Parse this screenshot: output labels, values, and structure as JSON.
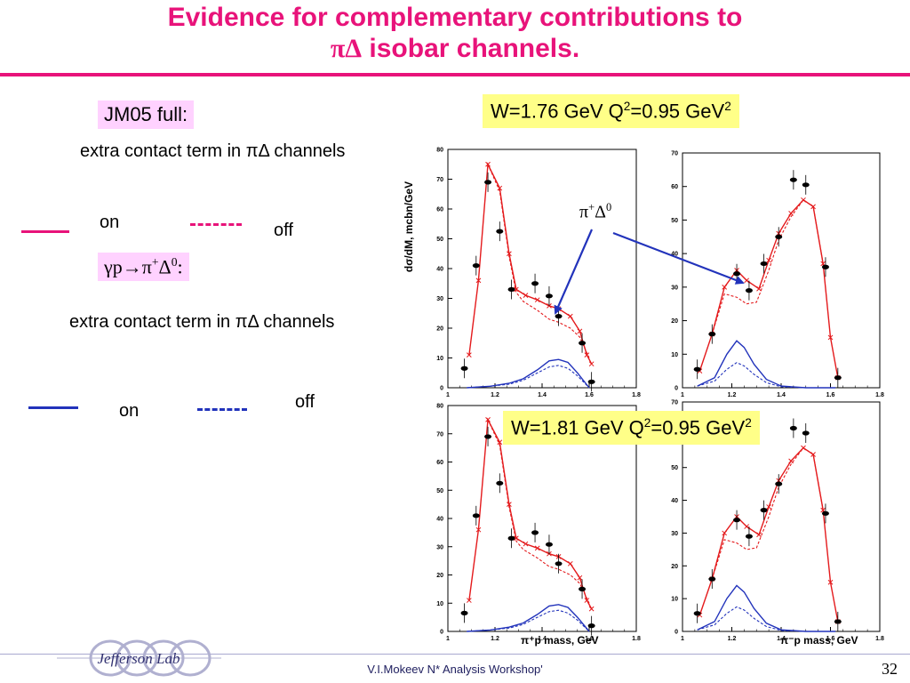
{
  "title": {
    "line1": "Evidence for complementary contributions to",
    "line2_symbol": "πΔ",
    "line2_text": " isobar channels."
  },
  "left": {
    "jm05": "JM05 full:",
    "red_desc": "extra contact term in πΔ channels",
    "red_on": "on",
    "red_off": "off",
    "reaction_prefix": "γp→π",
    "reaction_sup1": "+",
    "reaction_mid": "Δ",
    "reaction_sup2": "0",
    "reaction_suffix": ":",
    "blue_desc": "extra contact term in πΔ channels",
    "blue_on": "on",
    "blue_off": "off",
    "red_color": "#e8137a",
    "blue_color": "#2233bb"
  },
  "boxes": {
    "w1_prefix": "W=1.76 GeV Q",
    "w1_sup1": "2",
    "w1_mid": "=0.95 GeV",
    "w1_sup2": "2",
    "w2_prefix": "W=1.81 GeV Q",
    "w2_sup1": "2",
    "w2_mid": "=0.95 GeV",
    "w2_sup2": "2"
  },
  "annotation": {
    "label": "π",
    "sup1": "+",
    "mid": "Δ",
    "sup2": "0"
  },
  "axes": {
    "ylabel": "dσ/dM, mcbn/GeV",
    "xlabel_left": "π⁺p mass, GeV",
    "xlabel_right": "π⁻p mass, GeV"
  },
  "footer": {
    "text": "V.I.Mokeev  N* Analysis Workshop'",
    "page": "32",
    "logo_text": "Jefferson Lab"
  },
  "chart_data": [
    {
      "type": "line",
      "panel": "top-left",
      "xlim": [
        1,
        1.8
      ],
      "ylim": [
        0,
        80
      ],
      "xticks": [
        1,
        1.2,
        1.4,
        1.6,
        1.8
      ],
      "yticks": [
        0,
        10,
        20,
        30,
        40,
        50,
        60,
        70,
        80
      ],
      "points": {
        "x": [
          1.07,
          1.12,
          1.17,
          1.22,
          1.27,
          1.37,
          1.43,
          1.47,
          1.57,
          1.61
        ],
        "y": [
          6.5,
          41,
          69,
          52.5,
          33,
          35,
          30.8,
          24,
          15,
          2
        ]
      },
      "series": [
        {
          "color": "#e41a1c",
          "style": "solid",
          "x": [
            1.09,
            1.13,
            1.17,
            1.22,
            1.26,
            1.29,
            1.33,
            1.38,
            1.43,
            1.47,
            1.52,
            1.56,
            1.59,
            1.61
          ],
          "y": [
            11,
            36,
            75,
            67,
            45,
            33,
            31,
            29.5,
            27.5,
            26.5,
            24,
            19,
            11,
            8
          ]
        },
        {
          "color": "#e41a1c",
          "style": "dashed",
          "x": [
            1.17,
            1.22,
            1.26,
            1.29,
            1.32,
            1.38,
            1.43,
            1.47,
            1.52,
            1.56,
            1.6
          ],
          "y": [
            75,
            66,
            44,
            32,
            29,
            26,
            23,
            22,
            20,
            17,
            10
          ]
        },
        {
          "color": "#2233bb",
          "style": "solid",
          "x": [
            1.08,
            1.18,
            1.26,
            1.32,
            1.38,
            1.43,
            1.47,
            1.51,
            1.55,
            1.6
          ],
          "y": [
            0,
            0.5,
            1.5,
            3,
            6,
            9,
            9.5,
            8.5,
            5,
            0
          ]
        },
        {
          "color": "#2233bb",
          "style": "dashed",
          "x": [
            1.08,
            1.18,
            1.26,
            1.32,
            1.38,
            1.43,
            1.47,
            1.51,
            1.55,
            1.6
          ],
          "y": [
            0,
            0.5,
            1.2,
            2.5,
            5,
            7,
            7.5,
            6.5,
            4,
            0
          ]
        }
      ]
    },
    {
      "type": "line",
      "panel": "top-right",
      "xlim": [
        1,
        1.8
      ],
      "ylim": [
        0,
        70
      ],
      "xticks": [
        1,
        1.2,
        1.4,
        1.6,
        1.8
      ],
      "yticks": [
        0,
        10,
        20,
        30,
        40,
        50,
        60,
        70
      ],
      "points": {
        "x": [
          1.06,
          1.12,
          1.22,
          1.27,
          1.33,
          1.39,
          1.45,
          1.5,
          1.58,
          1.63
        ],
        "y": [
          5.5,
          16,
          34,
          29,
          37,
          45,
          62,
          60.5,
          36,
          3
        ]
      },
      "series": [
        {
          "color": "#e41a1c",
          "style": "solid",
          "x": [
            1.07,
            1.12,
            1.17,
            1.22,
            1.26,
            1.31,
            1.35,
            1.39,
            1.44,
            1.49,
            1.53,
            1.57,
            1.6,
            1.63
          ],
          "y": [
            5,
            16,
            30,
            35,
            32,
            29.5,
            38,
            46,
            52,
            56,
            54,
            37,
            15,
            3
          ]
        },
        {
          "color": "#e41a1c",
          "style": "dashed",
          "x": [
            1.12,
            1.17,
            1.22,
            1.26,
            1.3,
            1.35,
            1.39,
            1.44,
            1.49,
            1.53,
            1.57
          ],
          "y": [
            16,
            28,
            27,
            25,
            25.5,
            35,
            44,
            51,
            56,
            54,
            37
          ]
        },
        {
          "color": "#2233bb",
          "style": "solid",
          "x": [
            1.06,
            1.13,
            1.18,
            1.22,
            1.25,
            1.29,
            1.34,
            1.4,
            1.5,
            1.62
          ],
          "y": [
            0.5,
            3,
            10,
            14,
            12,
            7,
            2.5,
            0.5,
            0,
            0
          ]
        },
        {
          "color": "#2233bb",
          "style": "dashed",
          "x": [
            1.06,
            1.13,
            1.18,
            1.22,
            1.25,
            1.29,
            1.34,
            1.4,
            1.5,
            1.62
          ],
          "y": [
            0.5,
            2,
            5.5,
            7.5,
            6.5,
            4,
            1.5,
            0.3,
            0,
            0
          ]
        }
      ]
    },
    {
      "type": "line",
      "panel": "bottom-left",
      "xlim": [
        1,
        1.8
      ],
      "ylim": [
        0,
        80
      ],
      "xticks": [
        1,
        1.2,
        1.4,
        1.6,
        1.8
      ],
      "yticks": [
        0,
        10,
        20,
        30,
        40,
        50,
        60,
        70,
        80
      ],
      "points": {
        "x": [
          1.07,
          1.12,
          1.17,
          1.22,
          1.27,
          1.37,
          1.43,
          1.47,
          1.57,
          1.61
        ],
        "y": [
          6.5,
          41,
          69,
          52.5,
          33,
          35,
          30.8,
          24,
          15,
          2
        ]
      },
      "series": [
        {
          "color": "#e41a1c",
          "style": "solid",
          "x": [
            1.09,
            1.13,
            1.17,
            1.22,
            1.26,
            1.29,
            1.33,
            1.38,
            1.43,
            1.47,
            1.52,
            1.56,
            1.59,
            1.61
          ],
          "y": [
            11,
            36,
            75,
            67,
            45,
            33,
            31,
            29.5,
            27.5,
            26.5,
            24,
            19,
            11,
            8
          ]
        },
        {
          "color": "#e41a1c",
          "style": "dashed",
          "x": [
            1.17,
            1.22,
            1.26,
            1.29,
            1.32,
            1.38,
            1.43,
            1.47,
            1.52,
            1.56,
            1.6
          ],
          "y": [
            75,
            66,
            44,
            32,
            29,
            26,
            23,
            22,
            20,
            17,
            10
          ]
        },
        {
          "color": "#2233bb",
          "style": "solid",
          "x": [
            1.08,
            1.18,
            1.26,
            1.32,
            1.38,
            1.43,
            1.47,
            1.51,
            1.55,
            1.6
          ],
          "y": [
            0,
            0.5,
            1.5,
            3,
            6,
            9,
            9.5,
            8.5,
            5,
            0
          ]
        },
        {
          "color": "#2233bb",
          "style": "dashed",
          "x": [
            1.08,
            1.18,
            1.26,
            1.32,
            1.38,
            1.43,
            1.47,
            1.51,
            1.55,
            1.6
          ],
          "y": [
            0,
            0.5,
            1.2,
            2.5,
            5,
            7,
            7.5,
            6.5,
            4,
            0
          ]
        }
      ]
    },
    {
      "type": "line",
      "panel": "bottom-right",
      "xlim": [
        1,
        1.8
      ],
      "ylim": [
        0,
        70
      ],
      "xticks": [
        1,
        1.2,
        1.4,
        1.6,
        1.8
      ],
      "yticks": [
        0,
        10,
        20,
        30,
        40,
        50,
        60,
        70
      ],
      "points": {
        "x": [
          1.06,
          1.12,
          1.22,
          1.27,
          1.33,
          1.39,
          1.45,
          1.5,
          1.58,
          1.63
        ],
        "y": [
          5.5,
          16,
          34,
          29,
          37,
          45,
          62,
          60.5,
          36,
          3
        ]
      },
      "series": [
        {
          "color": "#e41a1c",
          "style": "solid",
          "x": [
            1.07,
            1.12,
            1.17,
            1.22,
            1.26,
            1.31,
            1.35,
            1.39,
            1.44,
            1.49,
            1.53,
            1.57,
            1.6,
            1.63
          ],
          "y": [
            5,
            16,
            30,
            35,
            32,
            29.5,
            38,
            46,
            52,
            56,
            54,
            37,
            15,
            3
          ]
        },
        {
          "color": "#e41a1c",
          "style": "dashed",
          "x": [
            1.12,
            1.17,
            1.22,
            1.26,
            1.3,
            1.35,
            1.39,
            1.44,
            1.49,
            1.53,
            1.57
          ],
          "y": [
            16,
            28,
            27,
            25,
            25.5,
            35,
            44,
            51,
            56,
            54,
            37
          ]
        },
        {
          "color": "#2233bb",
          "style": "solid",
          "x": [
            1.06,
            1.13,
            1.18,
            1.22,
            1.25,
            1.29,
            1.34,
            1.4,
            1.5,
            1.62
          ],
          "y": [
            0.5,
            3,
            10,
            14,
            12,
            7,
            2.5,
            0.5,
            0,
            0
          ]
        },
        {
          "color": "#2233bb",
          "style": "dashed",
          "x": [
            1.06,
            1.13,
            1.18,
            1.22,
            1.25,
            1.29,
            1.34,
            1.4,
            1.5,
            1.62
          ],
          "y": [
            0.5,
            2,
            5.5,
            7.5,
            6.5,
            4,
            1.5,
            0.3,
            0,
            0
          ]
        }
      ]
    }
  ]
}
